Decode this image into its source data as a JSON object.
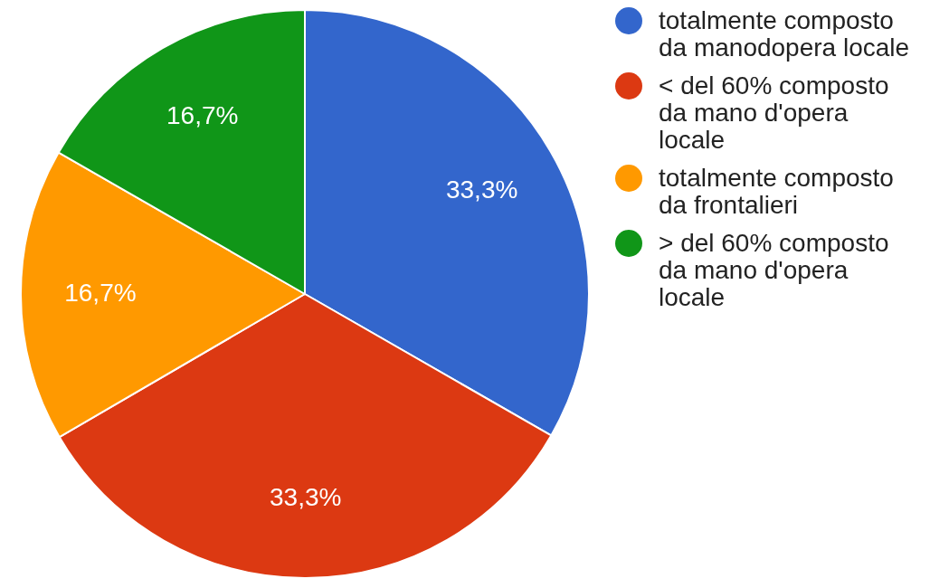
{
  "chart_data": {
    "type": "pie",
    "categories": [
      "totalmente composto da manodopera locale",
      "< del 60% composto da mano d'opera locale",
      "totalmente composto da frontalieri",
      "> del 60% composto da mano d'opera locale"
    ],
    "values": [
      33.3,
      33.3,
      16.7,
      16.7
    ],
    "colors": [
      "#3366cc",
      "#dc3912",
      "#ff9900",
      "#109618"
    ],
    "value_labels": [
      "33,3%",
      "33,3%",
      "16,7%",
      "16,7%"
    ],
    "legend": "right"
  }
}
